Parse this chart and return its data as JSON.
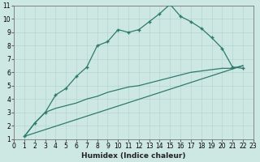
{
  "title": "",
  "xlabel": "Humidex (Indice chaleur)",
  "xlim": [
    0,
    23
  ],
  "ylim": [
    1,
    11
  ],
  "xticks": [
    0,
    1,
    2,
    3,
    4,
    5,
    6,
    7,
    8,
    9,
    10,
    11,
    12,
    13,
    14,
    15,
    16,
    17,
    18,
    19,
    20,
    21,
    22,
    23
  ],
  "yticks": [
    1,
    2,
    3,
    4,
    5,
    6,
    7,
    8,
    9,
    10,
    11
  ],
  "bg_color": "#cde8e2",
  "line_color": "#2d7a6e",
  "grid_color": "#b8d4ce",
  "line1_x": [
    1,
    2,
    3,
    4,
    5,
    6,
    7,
    8,
    9,
    10,
    11,
    12,
    13,
    14,
    15,
    16,
    17,
    18,
    19,
    20,
    21,
    22
  ],
  "line1_y": [
    1.2,
    2.2,
    3.0,
    4.3,
    4.8,
    5.7,
    6.4,
    8.0,
    8.3,
    9.2,
    9.0,
    9.2,
    9.8,
    10.4,
    11.1,
    10.2,
    9.8,
    9.3,
    8.6,
    7.8,
    6.4,
    6.3
  ],
  "line2_x": [
    1,
    22
  ],
  "line2_y": [
    1.2,
    6.5
  ],
  "line3_x": [
    1,
    2,
    3,
    4,
    5,
    6,
    7,
    8,
    9,
    10,
    11,
    12,
    13,
    14,
    15,
    16,
    17,
    18,
    19,
    20,
    21,
    22
  ],
  "line3_y": [
    1.2,
    2.2,
    3.0,
    3.3,
    3.5,
    3.7,
    4.0,
    4.2,
    4.5,
    4.7,
    4.9,
    5.0,
    5.2,
    5.4,
    5.6,
    5.8,
    6.0,
    6.1,
    6.2,
    6.3,
    6.3,
    6.5
  ],
  "tick_fontsize": 5.5,
  "xlabel_fontsize": 6.5
}
